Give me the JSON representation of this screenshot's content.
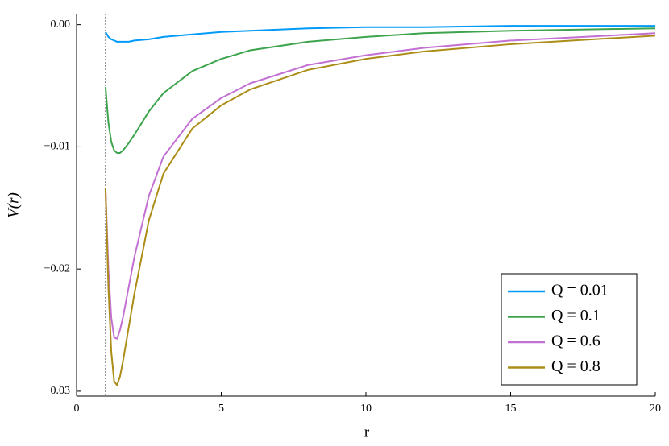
{
  "chart_data": {
    "type": "line",
    "xlabel": "r",
    "ylabel": "V(r)",
    "x": [
      1,
      1.1,
      1.2,
      1.3,
      1.4,
      1.5,
      1.6,
      1.8,
      2,
      2.5,
      3,
      4,
      5,
      6,
      8,
      10,
      12,
      15,
      20
    ],
    "series": [
      {
        "name": "Q = 0.01",
        "color": "#009af9",
        "values": [
          -0.0006,
          -0.001,
          -0.0012,
          -0.0013,
          -0.0014,
          -0.0014,
          -0.0014,
          -0.0014,
          -0.0013,
          -0.0012,
          -0.001,
          -0.0008,
          -0.0006,
          -0.0005,
          -0.0003,
          -0.0002,
          -0.0002,
          -0.0001,
          -0.0001
        ]
      },
      {
        "name": "Q = 0.1",
        "color": "#3da44d",
        "values": [
          -0.0051,
          -0.008,
          -0.0096,
          -0.0103,
          -0.0105,
          -0.0105,
          -0.0103,
          -0.0097,
          -0.009,
          -0.0071,
          -0.0056,
          -0.0038,
          -0.0028,
          -0.0021,
          -0.0014,
          -0.001,
          -0.0007,
          -0.0005,
          -0.0003
        ]
      },
      {
        "name": "Q = 0.6",
        "color": "#c271d2",
        "values": [
          -0.0134,
          -0.02,
          -0.024,
          -0.0256,
          -0.0257,
          -0.025,
          -0.024,
          -0.0215,
          -0.019,
          -0.014,
          -0.0108,
          -0.0077,
          -0.006,
          -0.0048,
          -0.0033,
          -0.0025,
          -0.0019,
          -0.0013,
          -0.0007
        ]
      },
      {
        "name": "Q = 0.8",
        "color": "#ac8d18",
        "values": [
          -0.0134,
          -0.0215,
          -0.0268,
          -0.0292,
          -0.0295,
          -0.0288,
          -0.0276,
          -0.0248,
          -0.022,
          -0.016,
          -0.0122,
          -0.0085,
          -0.0066,
          -0.0053,
          -0.0037,
          -0.0028,
          -0.0022,
          -0.0016,
          -0.0009
        ]
      }
    ],
    "vline": 1,
    "xlim": [
      0,
      20
    ],
    "xticks": [
      0,
      5,
      10,
      15,
      20
    ],
    "ylim": [
      -0.0304,
      0.0009
    ],
    "yticks": [
      {
        "value": 0,
        "label": "0.00"
      },
      {
        "value": -0.01,
        "label": "−0.01"
      },
      {
        "value": -0.02,
        "label": "−0.02"
      },
      {
        "value": -0.03,
        "label": "−0.03"
      }
    ],
    "grid": false,
    "legend": "bottom-right"
  }
}
